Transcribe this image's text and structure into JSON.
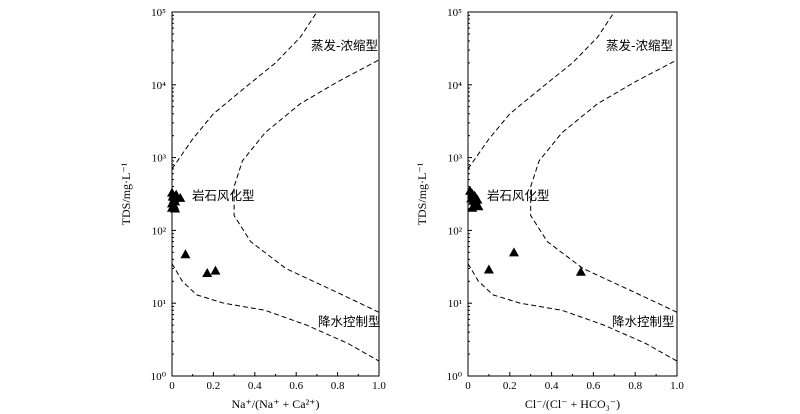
{
  "chart_data": [
    {
      "type": "scatter",
      "xlabel": "Na⁺/(Na⁺ + Ca²⁺)",
      "ylabel": "TDS/mg·L⁻¹",
      "xlim": [
        0,
        1.0
      ],
      "ylim": [
        1,
        100000
      ],
      "yscale": "log",
      "xticks": [
        "0",
        "0.2",
        "0.4",
        "0.6",
        "0.8",
        "1.0"
      ],
      "yticks": [
        "10⁰",
        "10¹",
        "10²",
        "10³",
        "10⁴",
        "10⁵"
      ],
      "grid": false,
      "marker": "filled-triangle",
      "regions": [
        "蒸发-浓缩型",
        "岩石风化型",
        "降水控制型"
      ],
      "points": [
        {
          "x": 0.0,
          "y": 330
        },
        {
          "x": 0.005,
          "y": 300
        },
        {
          "x": 0.01,
          "y": 270
        },
        {
          "x": 0.015,
          "y": 250
        },
        {
          "x": 0.0,
          "y": 235
        },
        {
          "x": 0.01,
          "y": 220
        },
        {
          "x": 0.0,
          "y": 205
        },
        {
          "x": 0.015,
          "y": 200
        },
        {
          "x": 0.005,
          "y": 290
        },
        {
          "x": 0.02,
          "y": 310
        },
        {
          "x": 0.04,
          "y": 280
        },
        {
          "x": 0.065,
          "y": 47
        },
        {
          "x": 0.17,
          "y": 26
        },
        {
          "x": 0.21,
          "y": 28
        }
      ],
      "boundary_upper": [
        {
          "x": 0.0,
          "y": 700
        },
        {
          "x": 0.1,
          "y": 1800
        },
        {
          "x": 0.2,
          "y": 4000
        },
        {
          "x": 0.35,
          "y": 9000
        },
        {
          "x": 0.5,
          "y": 20000
        },
        {
          "x": 0.62,
          "y": 45000
        },
        {
          "x": 0.7,
          "y": 100000
        }
      ],
      "boundary_lower": [
        {
          "x": 0.0,
          "y": 35
        },
        {
          "x": 0.05,
          "y": 20
        },
        {
          "x": 0.12,
          "y": 13
        },
        {
          "x": 0.25,
          "y": 10
        },
        {
          "x": 0.45,
          "y": 8
        },
        {
          "x": 0.65,
          "y": 5
        },
        {
          "x": 0.85,
          "y": 2.8
        },
        {
          "x": 1.0,
          "y": 1.6
        }
      ],
      "boundary_right": [
        {
          "x": 1.0,
          "y": 7.5
        },
        {
          "x": 0.8,
          "y": 14
        },
        {
          "x": 0.55,
          "y": 30
        },
        {
          "x": 0.38,
          "y": 70
        },
        {
          "x": 0.3,
          "y": 160
        },
        {
          "x": 0.3,
          "y": 400
        },
        {
          "x": 0.34,
          "y": 900
        },
        {
          "x": 0.45,
          "y": 2200
        },
        {
          "x": 0.62,
          "y": 5500
        },
        {
          "x": 0.8,
          "y": 11000
        },
        {
          "x": 1.0,
          "y": 22000
        }
      ]
    },
    {
      "type": "scatter",
      "xlabel": "Cl⁻/(Cl⁻ + HCO₃⁻)",
      "ylabel": "TDS/mg·L⁻¹",
      "xlim": [
        0,
        1.0
      ],
      "ylim": [
        1,
        100000
      ],
      "yscale": "log",
      "xticks": [
        "0",
        "0.2",
        "0.4",
        "0.6",
        "0.8",
        "1.0"
      ],
      "yticks": [
        "10⁰",
        "10¹",
        "10²",
        "10³",
        "10⁴",
        "10⁵"
      ],
      "grid": false,
      "marker": "filled-triangle",
      "regions": [
        "蒸发-浓缩型",
        "岩石风化型",
        "降水控制型"
      ],
      "points": [
        {
          "x": 0.01,
          "y": 350
        },
        {
          "x": 0.02,
          "y": 320
        },
        {
          "x": 0.03,
          "y": 300
        },
        {
          "x": 0.015,
          "y": 275
        },
        {
          "x": 0.025,
          "y": 255
        },
        {
          "x": 0.04,
          "y": 240
        },
        {
          "x": 0.03,
          "y": 225
        },
        {
          "x": 0.05,
          "y": 215
        },
        {
          "x": 0.02,
          "y": 205
        },
        {
          "x": 0.035,
          "y": 290
        },
        {
          "x": 0.045,
          "y": 265
        },
        {
          "x": 0.1,
          "y": 29
        },
        {
          "x": 0.22,
          "y": 50
        },
        {
          "x": 0.54,
          "y": 27
        }
      ],
      "boundary_upper": [
        {
          "x": 0.0,
          "y": 700
        },
        {
          "x": 0.1,
          "y": 1800
        },
        {
          "x": 0.2,
          "y": 4000
        },
        {
          "x": 0.35,
          "y": 9000
        },
        {
          "x": 0.5,
          "y": 20000
        },
        {
          "x": 0.62,
          "y": 45000
        },
        {
          "x": 0.7,
          "y": 100000
        }
      ],
      "boundary_lower": [
        {
          "x": 0.0,
          "y": 35
        },
        {
          "x": 0.05,
          "y": 20
        },
        {
          "x": 0.12,
          "y": 13
        },
        {
          "x": 0.25,
          "y": 10
        },
        {
          "x": 0.45,
          "y": 8
        },
        {
          "x": 0.65,
          "y": 5
        },
        {
          "x": 0.85,
          "y": 2.8
        },
        {
          "x": 1.0,
          "y": 1.6
        }
      ],
      "boundary_right": [
        {
          "x": 1.0,
          "y": 7.5
        },
        {
          "x": 0.8,
          "y": 14
        },
        {
          "x": 0.55,
          "y": 30
        },
        {
          "x": 0.38,
          "y": 70
        },
        {
          "x": 0.3,
          "y": 160
        },
        {
          "x": 0.3,
          "y": 400
        },
        {
          "x": 0.34,
          "y": 900
        },
        {
          "x": 0.45,
          "y": 2200
        },
        {
          "x": 0.62,
          "y": 5500
        },
        {
          "x": 0.8,
          "y": 11000
        },
        {
          "x": 1.0,
          "y": 22000
        }
      ]
    }
  ]
}
